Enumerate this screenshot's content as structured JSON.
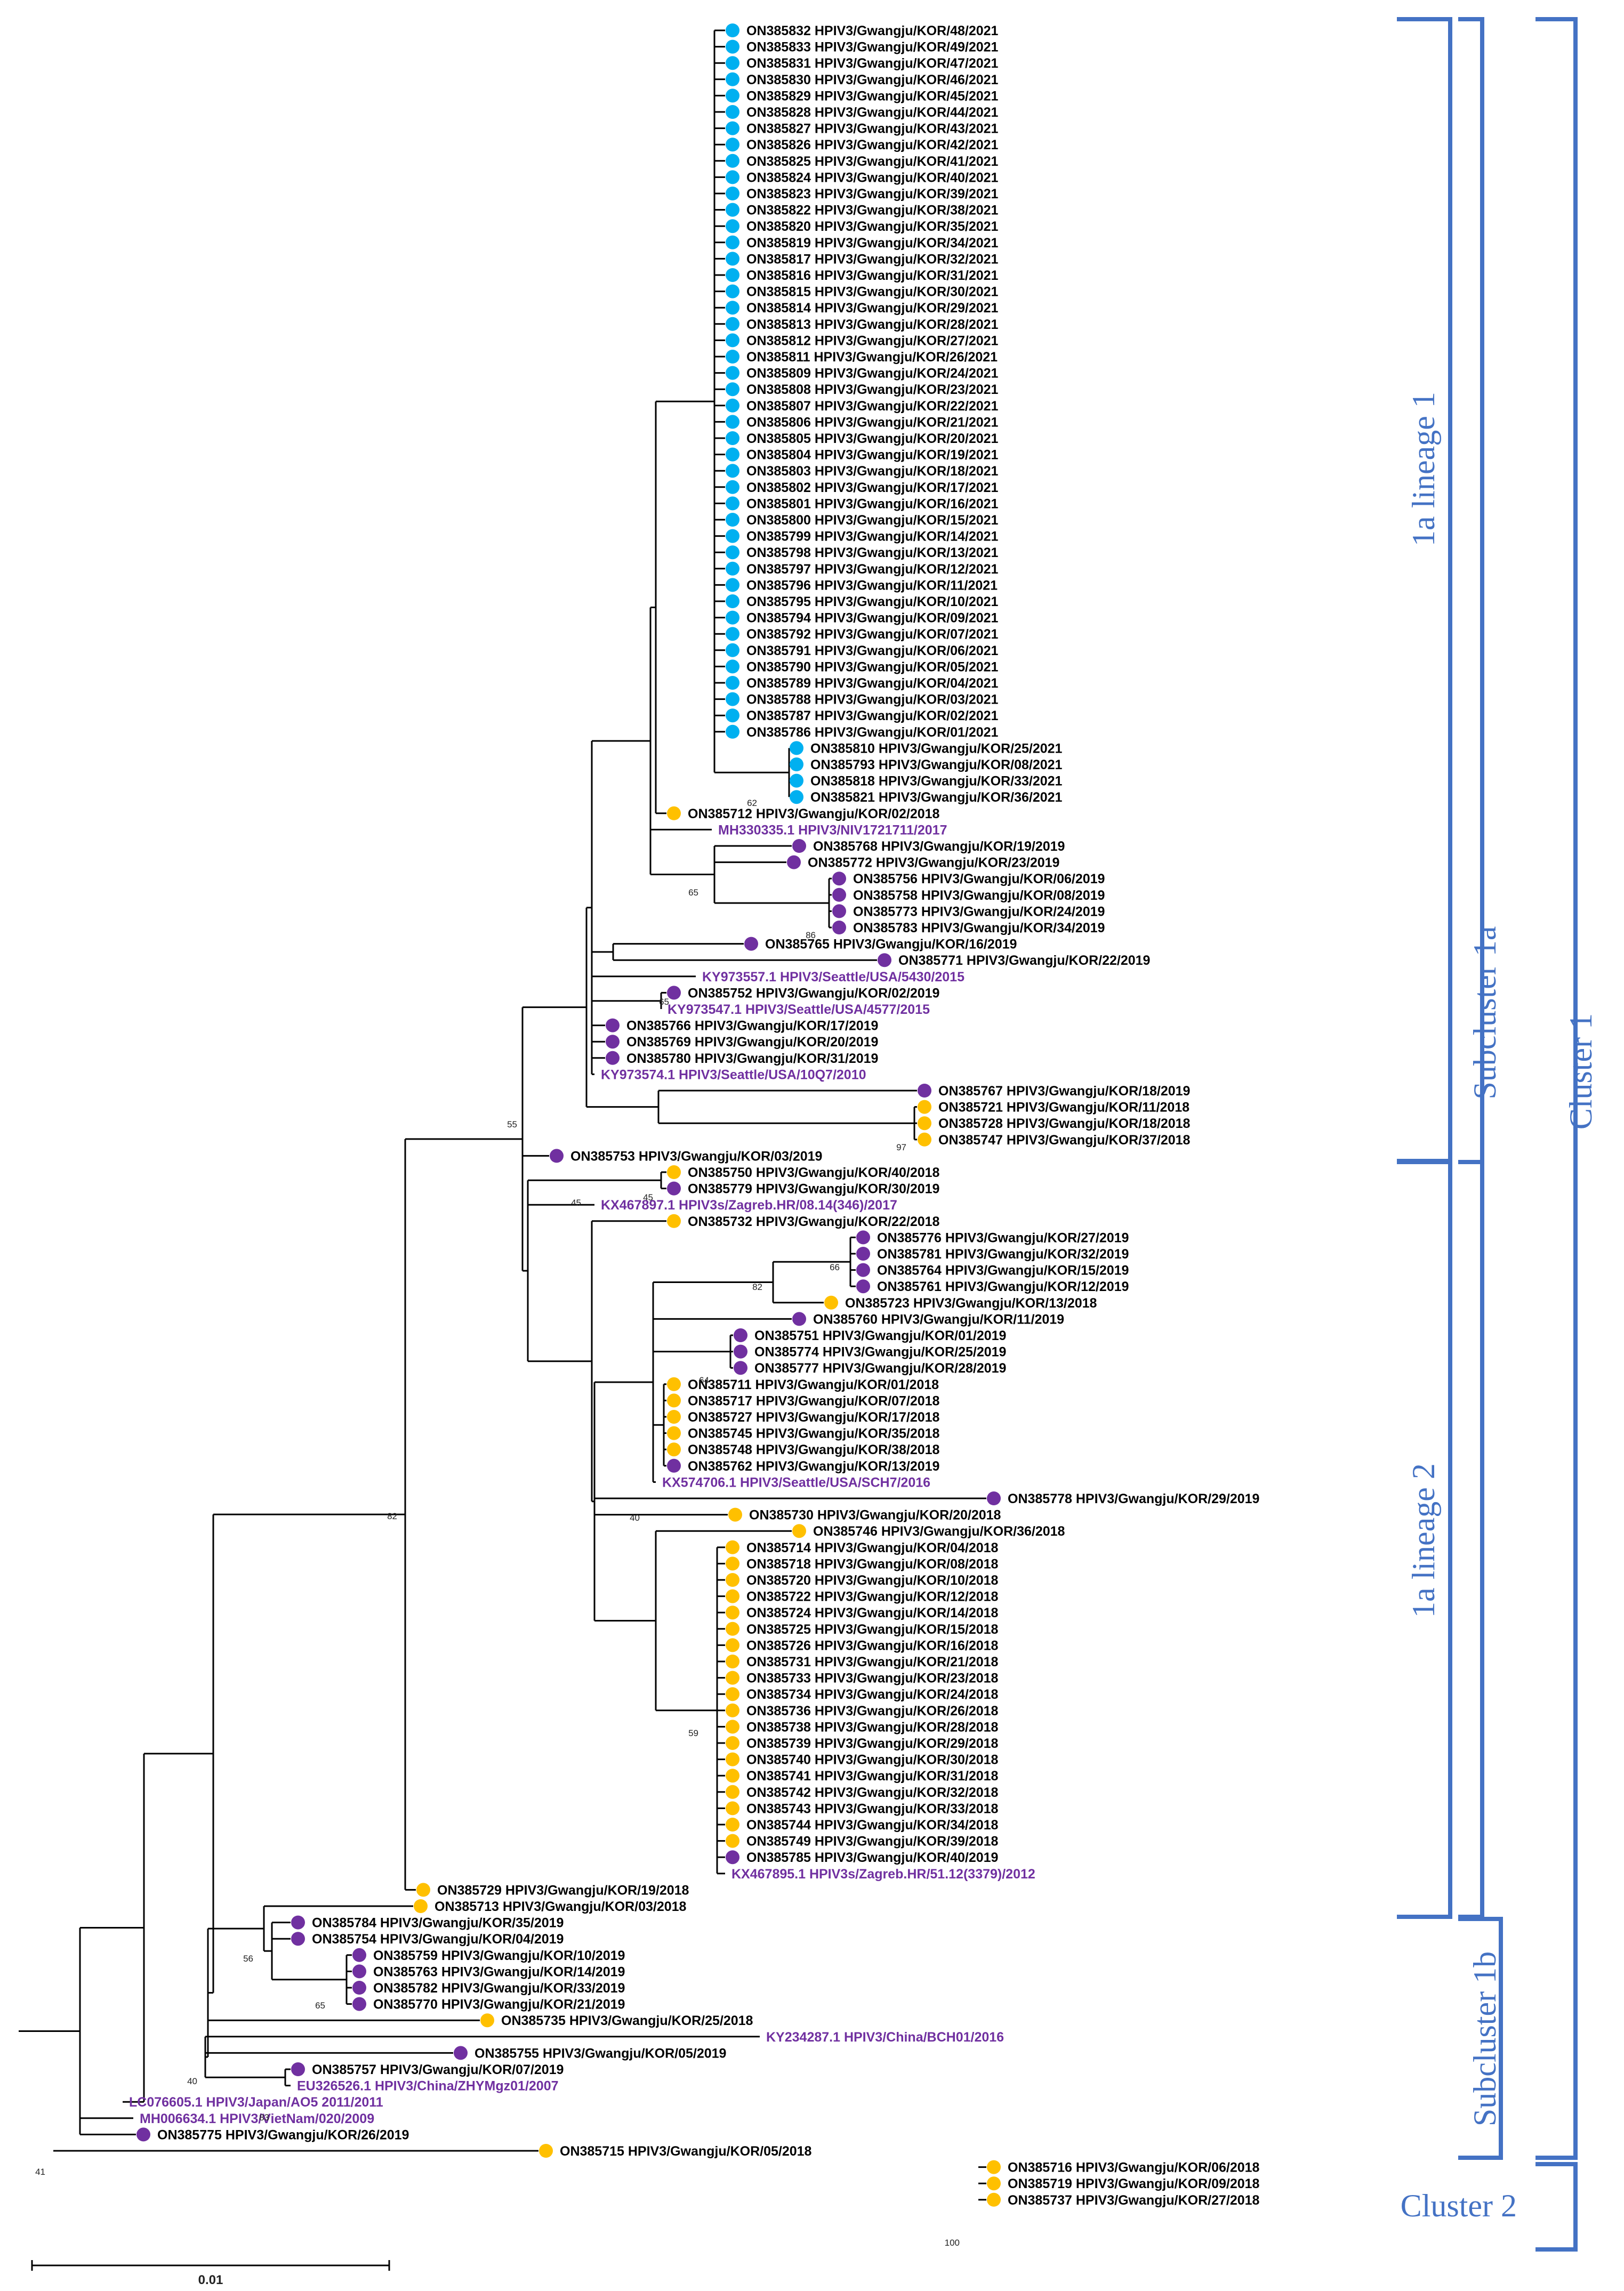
{
  "colors": {
    "blue_dot": "#00b0f0",
    "yellow_dot": "#ffc000",
    "purple_dot": "#7030a0",
    "ref_text": "#7030a0",
    "label_text": "#000000",
    "bracket": "#4472c4",
    "branch": "#000000"
  },
  "groups": {
    "lineage1": "1a lineage 1",
    "lineage2": "1a lineage 2",
    "subcluster1a": "Subcluster 1a",
    "subcluster1b": "Subcluster 1b",
    "cluster1": "Cluster 1",
    "cluster2": "Cluster 2"
  },
  "scale": {
    "label": "0.01"
  },
  "bootstrap": [
    "62",
    "65",
    "86",
    "65",
    "97",
    "55",
    "45",
    "45",
    "82",
    "66",
    "64",
    "40",
    "59",
    "82",
    "56",
    "65",
    "40",
    "83",
    "41",
    "100"
  ],
  "taxa": [
    {
      "label": "ON385832 HPIV3/Gwangju/KOR/48/2021",
      "dot": "blue"
    },
    {
      "label": "ON385833 HPIV3/Gwangju/KOR/49/2021",
      "dot": "blue"
    },
    {
      "label": "ON385831 HPIV3/Gwangju/KOR/47/2021",
      "dot": "blue"
    },
    {
      "label": "ON385830 HPIV3/Gwangju/KOR/46/2021",
      "dot": "blue"
    },
    {
      "label": "ON385829 HPIV3/Gwangju/KOR/45/2021",
      "dot": "blue"
    },
    {
      "label": "ON385828 HPIV3/Gwangju/KOR/44/2021",
      "dot": "blue"
    },
    {
      "label": "ON385827 HPIV3/Gwangju/KOR/43/2021",
      "dot": "blue"
    },
    {
      "label": "ON385826 HPIV3/Gwangju/KOR/42/2021",
      "dot": "blue"
    },
    {
      "label": "ON385825 HPIV3/Gwangju/KOR/41/2021",
      "dot": "blue"
    },
    {
      "label": "ON385824 HPIV3/Gwangju/KOR/40/2021",
      "dot": "blue"
    },
    {
      "label": "ON385823 HPIV3/Gwangju/KOR/39/2021",
      "dot": "blue"
    },
    {
      "label": "ON385822 HPIV3/Gwangju/KOR/38/2021",
      "dot": "blue"
    },
    {
      "label": "ON385820 HPIV3/Gwangju/KOR/35/2021",
      "dot": "blue"
    },
    {
      "label": "ON385819 HPIV3/Gwangju/KOR/34/2021",
      "dot": "blue"
    },
    {
      "label": "ON385817 HPIV3/Gwangju/KOR/32/2021",
      "dot": "blue"
    },
    {
      "label": "ON385816 HPIV3/Gwangju/KOR/31/2021",
      "dot": "blue"
    },
    {
      "label": "ON385815 HPIV3/Gwangju/KOR/30/2021",
      "dot": "blue"
    },
    {
      "label": "ON385814 HPIV3/Gwangju/KOR/29/2021",
      "dot": "blue"
    },
    {
      "label": "ON385813 HPIV3/Gwangju/KOR/28/2021",
      "dot": "blue"
    },
    {
      "label": "ON385812 HPIV3/Gwangju/KOR/27/2021",
      "dot": "blue"
    },
    {
      "label": "ON385811 HPIV3/Gwangju/KOR/26/2021",
      "dot": "blue"
    },
    {
      "label": "ON385809 HPIV3/Gwangju/KOR/24/2021",
      "dot": "blue"
    },
    {
      "label": "ON385808 HPIV3/Gwangju/KOR/23/2021",
      "dot": "blue"
    },
    {
      "label": "ON385807 HPIV3/Gwangju/KOR/22/2021",
      "dot": "blue"
    },
    {
      "label": "ON385806 HPIV3/Gwangju/KOR/21/2021",
      "dot": "blue"
    },
    {
      "label": "ON385805 HPIV3/Gwangju/KOR/20/2021",
      "dot": "blue"
    },
    {
      "label": "ON385804 HPIV3/Gwangju/KOR/19/2021",
      "dot": "blue"
    },
    {
      "label": "ON385803 HPIV3/Gwangju/KOR/18/2021",
      "dot": "blue"
    },
    {
      "label": "ON385802 HPIV3/Gwangju/KOR/17/2021",
      "dot": "blue"
    },
    {
      "label": "ON385801 HPIV3/Gwangju/KOR/16/2021",
      "dot": "blue"
    },
    {
      "label": "ON385800 HPIV3/Gwangju/KOR/15/2021",
      "dot": "blue"
    },
    {
      "label": "ON385799 HPIV3/Gwangju/KOR/14/2021",
      "dot": "blue"
    },
    {
      "label": "ON385798 HPIV3/Gwangju/KOR/13/2021",
      "dot": "blue"
    },
    {
      "label": "ON385797 HPIV3/Gwangju/KOR/12/2021",
      "dot": "blue"
    },
    {
      "label": "ON385796 HPIV3/Gwangju/KOR/11/2021",
      "dot": "blue"
    },
    {
      "label": "ON385795 HPIV3/Gwangju/KOR/10/2021",
      "dot": "blue"
    },
    {
      "label": "ON385794 HPIV3/Gwangju/KOR/09/2021",
      "dot": "blue"
    },
    {
      "label": "ON385792 HPIV3/Gwangju/KOR/07/2021",
      "dot": "blue"
    },
    {
      "label": "ON385791 HPIV3/Gwangju/KOR/06/2021",
      "dot": "blue"
    },
    {
      "label": "ON385790 HPIV3/Gwangju/KOR/05/2021",
      "dot": "blue"
    },
    {
      "label": "ON385789 HPIV3/Gwangju/KOR/04/2021",
      "dot": "blue"
    },
    {
      "label": "ON385788 HPIV3/Gwangju/KOR/03/2021",
      "dot": "blue"
    },
    {
      "label": "ON385787 HPIV3/Gwangju/KOR/02/2021",
      "dot": "blue"
    },
    {
      "label": "ON385786 HPIV3/Gwangju/KOR/01/2021",
      "dot": "blue"
    },
    {
      "label": "ON385810 HPIV3/Gwangju/KOR/25/2021",
      "dot": "blue"
    },
    {
      "label": "ON385793 HPIV3/Gwangju/KOR/08/2021",
      "dot": "blue"
    },
    {
      "label": "ON385818 HPIV3/Gwangju/KOR/33/2021",
      "dot": "blue"
    },
    {
      "label": "ON385821 HPIV3/Gwangju/KOR/36/2021",
      "dot": "blue"
    },
    {
      "label": "ON385712 HPIV3/Gwangju/KOR/02/2018",
      "dot": "yellow"
    },
    {
      "label": "MH330335.1 HPIV3/NIV1721711/2017",
      "dot": "none"
    },
    {
      "label": "ON385768 HPIV3/Gwangju/KOR/19/2019",
      "dot": "purple"
    },
    {
      "label": "ON385772 HPIV3/Gwangju/KOR/23/2019",
      "dot": "purple"
    },
    {
      "label": "ON385756 HPIV3/Gwangju/KOR/06/2019",
      "dot": "purple"
    },
    {
      "label": "ON385758 HPIV3/Gwangju/KOR/08/2019",
      "dot": "purple"
    },
    {
      "label": "ON385773 HPIV3/Gwangju/KOR/24/2019",
      "dot": "purple"
    },
    {
      "label": "ON385783 HPIV3/Gwangju/KOR/34/2019",
      "dot": "purple"
    },
    {
      "label": "ON385765 HPIV3/Gwangju/KOR/16/2019",
      "dot": "purple"
    },
    {
      "label": "ON385771 HPIV3/Gwangju/KOR/22/2019",
      "dot": "purple"
    },
    {
      "label": "KY973557.1 HPIV3/Seattle/USA/5430/2015",
      "dot": "none"
    },
    {
      "label": "ON385752 HPIV3/Gwangju/KOR/02/2019",
      "dot": "purple"
    },
    {
      "label": "KY973547.1 HPIV3/Seattle/USA/4577/2015",
      "dot": "none"
    },
    {
      "label": "ON385766 HPIV3/Gwangju/KOR/17/2019",
      "dot": "purple"
    },
    {
      "label": "ON385769 HPIV3/Gwangju/KOR/20/2019",
      "dot": "purple"
    },
    {
      "label": "ON385780 HPIV3/Gwangju/KOR/31/2019",
      "dot": "purple"
    },
    {
      "label": "KY973574.1 HPIV3/Seattle/USA/10Q7/2010",
      "dot": "none"
    },
    {
      "label": "ON385767 HPIV3/Gwangju/KOR/18/2019",
      "dot": "purple"
    },
    {
      "label": "ON385721 HPIV3/Gwangju/KOR/11/2018",
      "dot": "yellow"
    },
    {
      "label": "ON385728 HPIV3/Gwangju/KOR/18/2018",
      "dot": "yellow"
    },
    {
      "label": "ON385747 HPIV3/Gwangju/KOR/37/2018",
      "dot": "yellow"
    },
    {
      "label": "ON385753 HPIV3/Gwangju/KOR/03/2019",
      "dot": "purple"
    },
    {
      "label": "ON385750 HPIV3/Gwangju/KOR/40/2018",
      "dot": "yellow"
    },
    {
      "label": "ON385779 HPIV3/Gwangju/KOR/30/2019",
      "dot": "purple"
    },
    {
      "label": "KX467897.1 HPIV3s/Zagreb.HR/08.14(346)/2017",
      "dot": "none"
    },
    {
      "label": "ON385732 HPIV3/Gwangju/KOR/22/2018",
      "dot": "yellow"
    },
    {
      "label": "ON385776 HPIV3/Gwangju/KOR/27/2019",
      "dot": "purple"
    },
    {
      "label": "ON385781 HPIV3/Gwangju/KOR/32/2019",
      "dot": "purple"
    },
    {
      "label": "ON385764 HPIV3/Gwangju/KOR/15/2019",
      "dot": "purple"
    },
    {
      "label": "ON385761 HPIV3/Gwangju/KOR/12/2019",
      "dot": "purple"
    },
    {
      "label": "ON385723 HPIV3/Gwangju/KOR/13/2018",
      "dot": "yellow"
    },
    {
      "label": "ON385760 HPIV3/Gwangju/KOR/11/2019",
      "dot": "purple"
    },
    {
      "label": "ON385751 HPIV3/Gwangju/KOR/01/2019",
      "dot": "purple"
    },
    {
      "label": "ON385774 HPIV3/Gwangju/KOR/25/2019",
      "dot": "purple"
    },
    {
      "label": "ON385777 HPIV3/Gwangju/KOR/28/2019",
      "dot": "purple"
    },
    {
      "label": "ON385711 HPIV3/Gwangju/KOR/01/2018",
      "dot": "yellow"
    },
    {
      "label": "ON385717 HPIV3/Gwangju/KOR/07/2018",
      "dot": "yellow"
    },
    {
      "label": "ON385727 HPIV3/Gwangju/KOR/17/2018",
      "dot": "yellow"
    },
    {
      "label": "ON385745 HPIV3/Gwangju/KOR/35/2018",
      "dot": "yellow"
    },
    {
      "label": "ON385748 HPIV3/Gwangju/KOR/38/2018",
      "dot": "yellow"
    },
    {
      "label": "ON385762 HPIV3/Gwangju/KOR/13/2019",
      "dot": "purple"
    },
    {
      "label": "KX574706.1 HPIV3/Seattle/USA/SCH7/2016",
      "dot": "none"
    },
    {
      "label": "ON385778 HPIV3/Gwangju/KOR/29/2019",
      "dot": "purple"
    },
    {
      "label": "ON385730 HPIV3/Gwangju/KOR/20/2018",
      "dot": "yellow"
    },
    {
      "label": "ON385746 HPIV3/Gwangju/KOR/36/2018",
      "dot": "yellow"
    },
    {
      "label": "ON385714 HPIV3/Gwangju/KOR/04/2018",
      "dot": "yellow"
    },
    {
      "label": "ON385718 HPIV3/Gwangju/KOR/08/2018",
      "dot": "yellow"
    },
    {
      "label": "ON385720 HPIV3/Gwangju/KOR/10/2018",
      "dot": "yellow"
    },
    {
      "label": "ON385722 HPIV3/Gwangju/KOR/12/2018",
      "dot": "yellow"
    },
    {
      "label": "ON385724 HPIV3/Gwangju/KOR/14/2018",
      "dot": "yellow"
    },
    {
      "label": "ON385725 HPIV3/Gwangju/KOR/15/2018",
      "dot": "yellow"
    },
    {
      "label": "ON385726 HPIV3/Gwangju/KOR/16/2018",
      "dot": "yellow"
    },
    {
      "label": "ON385731 HPIV3/Gwangju/KOR/21/2018",
      "dot": "yellow"
    },
    {
      "label": "ON385733 HPIV3/Gwangju/KOR/23/2018",
      "dot": "yellow"
    },
    {
      "label": "ON385734 HPIV3/Gwangju/KOR/24/2018",
      "dot": "yellow"
    },
    {
      "label": "ON385736 HPIV3/Gwangju/KOR/26/2018",
      "dot": "yellow"
    },
    {
      "label": "ON385738 HPIV3/Gwangju/KOR/28/2018",
      "dot": "yellow"
    },
    {
      "label": "ON385739 HPIV3/Gwangju/KOR/29/2018",
      "dot": "yellow"
    },
    {
      "label": "ON385740 HPIV3/Gwangju/KOR/30/2018",
      "dot": "yellow"
    },
    {
      "label": "ON385741 HPIV3/Gwangju/KOR/31/2018",
      "dot": "yellow"
    },
    {
      "label": "ON385742 HPIV3/Gwangju/KOR/32/2018",
      "dot": "yellow"
    },
    {
      "label": "ON385743 HPIV3/Gwangju/KOR/33/2018",
      "dot": "yellow"
    },
    {
      "label": "ON385744 HPIV3/Gwangju/KOR/34/2018",
      "dot": "yellow"
    },
    {
      "label": "ON385749 HPIV3/Gwangju/KOR/39/2018",
      "dot": "yellow"
    },
    {
      "label": "ON385785 HPIV3/Gwangju/KOR/40/2019",
      "dot": "purple"
    },
    {
      "label": "KX467895.1 HPIV3s/Zagreb.HR/51.12(3379)/2012",
      "dot": "none"
    },
    {
      "label": "ON385729 HPIV3/Gwangju/KOR/19/2018",
      "dot": "yellow"
    },
    {
      "label": "ON385713 HPIV3/Gwangju/KOR/03/2018",
      "dot": "yellow"
    },
    {
      "label": "ON385784 HPIV3/Gwangju/KOR/35/2019",
      "dot": "purple"
    },
    {
      "label": "ON385754 HPIV3/Gwangju/KOR/04/2019",
      "dot": "purple"
    },
    {
      "label": "ON385759 HPIV3/Gwangju/KOR/10/2019",
      "dot": "purple"
    },
    {
      "label": "ON385763 HPIV3/Gwangju/KOR/14/2019",
      "dot": "purple"
    },
    {
      "label": "ON385782 HPIV3/Gwangju/KOR/33/2019",
      "dot": "purple"
    },
    {
      "label": "ON385770 HPIV3/Gwangju/KOR/21/2019",
      "dot": "purple"
    },
    {
      "label": "ON385735 HPIV3/Gwangju/KOR/25/2018",
      "dot": "yellow"
    },
    {
      "label": "KY234287.1 HPIV3/China/BCH01/2016",
      "dot": "none"
    },
    {
      "label": "ON385755 HPIV3/Gwangju/KOR/05/2019",
      "dot": "purple"
    },
    {
      "label": "ON385757 HPIV3/Gwangju/KOR/07/2019",
      "dot": "purple"
    },
    {
      "label": "EU326526.1 HPIV3/China/ZHYMgz01/2007",
      "dot": "none"
    },
    {
      "label": "LC076605.1 HPIV3/Japan/AO5 2011/2011",
      "dot": "none"
    },
    {
      "label": "MH006634.1 HPIV3/VietNam/020/2009",
      "dot": "none"
    },
    {
      "label": "ON385775 HPIV3/Gwangju/KOR/26/2019",
      "dot": "purple"
    },
    {
      "label": "ON385715 HPIV3/Gwangju/KOR/05/2018",
      "dot": "yellow"
    },
    {
      "label": "ON385716 HPIV3/Gwangju/KOR/06/2018",
      "dot": "yellow"
    },
    {
      "label": "ON385719 HPIV3/Gwangju/KOR/09/2018",
      "dot": "yellow"
    },
    {
      "label": "ON385737 HPIV3/Gwangju/KOR/27/2018",
      "dot": "yellow"
    }
  ]
}
